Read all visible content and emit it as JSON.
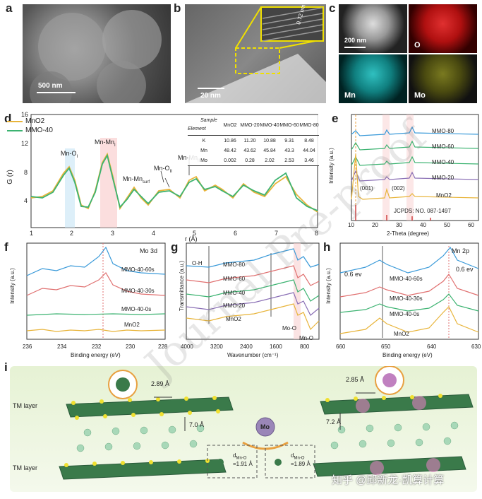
{
  "panels": {
    "a": {
      "label": "a",
      "scale": "500 nm"
    },
    "b": {
      "label": "b",
      "scale": "20 nm",
      "d": "0.72 nm"
    },
    "c": {
      "label": "c",
      "scale": "200 nm",
      "maps": [
        "O",
        "Mn",
        "Mo"
      ]
    },
    "d": {
      "label": "d",
      "legend": [
        "MnO2",
        "MMO-40"
      ],
      "peaks": [
        "Mn-O",
        "Mn-Mn",
        "Mn-Mn",
        "Mn-O",
        "Mn-Mn"
      ],
      "peak_subs": [
        "I",
        "I",
        "surf",
        "II",
        "II"
      ],
      "ylabel": "G (r)",
      "xlabel": "r (Å)",
      "xticks": [
        "1",
        "2",
        "3",
        "4",
        "5",
        "6",
        "7",
        "8"
      ],
      "yticks": [
        "4",
        "8",
        "12",
        "16"
      ],
      "table": {
        "header": [
          "Sample",
          "MnO2",
          "MMO-20",
          "MMO-40",
          "MMO-60",
          "MMO-80"
        ],
        "corner": "Element",
        "rows": [
          [
            "K",
            "10.86",
            "11.20",
            "10.88",
            "9.31",
            "8.48"
          ],
          [
            "Mn",
            "48.42",
            "43.62",
            "45.84",
            "43.3",
            "44.04"
          ],
          [
            "Mo",
            "0.002",
            "0.28",
            "2.02",
            "2.53",
            "3.46"
          ]
        ]
      }
    },
    "e": {
      "label": "e",
      "series": [
        "MMO-80",
        "MMO-60",
        "MMO-40",
        "MMO-20",
        "MnO2"
      ],
      "ylabel": "Intensity (a.u.)",
      "xlabel": "2-Theta (degree)",
      "xticks": [
        "10",
        "20",
        "30",
        "40",
        "50",
        "60"
      ],
      "peaks": [
        "(001)",
        "(002)"
      ],
      "ref": "JCPDS: NO. 087-1497"
    },
    "f": {
      "label": "f",
      "title": "Mo 3d",
      "series": [
        "MMO-40-60s",
        "MMO-40-30s",
        "MMO-40-0s",
        "MnO2"
      ],
      "ylabel": "Intensity (a.u.)",
      "xlabel": "Binding energy (eV)",
      "xticks": [
        "236",
        "234",
        "232",
        "230",
        "228"
      ]
    },
    "g": {
      "label": "g",
      "series": [
        "MMO-80",
        "MMO-60",
        "MMO-40",
        "MMO-20",
        "MnO2"
      ],
      "ylabel": "Transmittance (a.u.)",
      "xlabel": "Wavenumber (cm⁻¹)",
      "xticks": [
        "4000",
        "3200",
        "2400",
        "1600",
        "800"
      ],
      "bands": [
        "O-H",
        "Mo-O",
        "Mn-O"
      ]
    },
    "h": {
      "label": "h",
      "title": "Mn 2p",
      "series": [
        "MMO-40-60s",
        "MMO-40-30s",
        "MMO-40-0s",
        "MnO2"
      ],
      "ylabel": "Intensity (a.u.)",
      "xlabel": "Binding energy (eV)",
      "xticks": [
        "660",
        "650",
        "640",
        "630"
      ],
      "shift": "0.6 ev"
    },
    "i": {
      "label": "i",
      "tm": "TM layer",
      "d1": "2.89 Å",
      "d2": "7.0 Å",
      "d3": "2.85 Å",
      "d4": "7.2 Å",
      "mo": "Mo",
      "bond1": "d",
      "bond_sub": "Mn-O",
      "bond1_val": "=1.91 Å",
      "bond2_val": "=1.89 Å"
    }
  },
  "watermark": "Journal Pre-proof",
  "credit": "知乎 @邱新龙·凯算计算",
  "colors": {
    "mno2": "#e8b43a",
    "mmo40": "#3cb371",
    "blue": "#3a9ad9",
    "red": "#e07070",
    "purple": "#8a6fb5"
  }
}
